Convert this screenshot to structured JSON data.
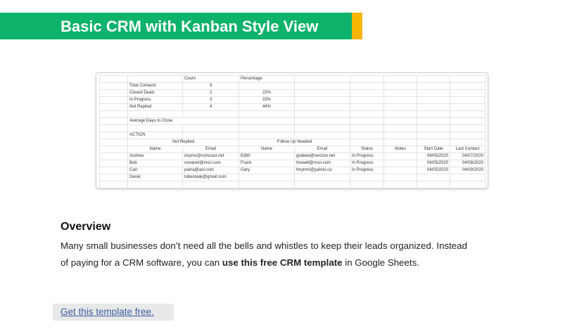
{
  "header": {
    "title": "Basic CRM with Kanban Style View"
  },
  "sheet": {
    "summary_headers": [
      "Count",
      "Percentage"
    ],
    "summary": [
      {
        "label": "Total Contacts",
        "count": 9,
        "percentage": null
      },
      {
        "label": "Closed Deals",
        "count": 2,
        "percentage": "22%"
      },
      {
        "label": "In Progress",
        "count": 3,
        "percentage": "33%"
      },
      {
        "label": "Not Replied",
        "count": 4,
        "percentage": "44%"
      }
    ],
    "average_label": "Average Days to Close",
    "action_label": "ACTION",
    "groups": [
      "Not Replied",
      "Follow Up Needed"
    ],
    "columns": [
      "Name",
      "Email",
      "Name",
      "Email",
      "Status",
      "Notes",
      "Start Date",
      "Last Contact"
    ],
    "contacts": [
      [
        "Andrew",
        "improv@comcast.net",
        "Edith",
        "godeke@verizon.net",
        "In Progress",
        null,
        "04/05/2020",
        "04/07/2020"
      ],
      [
        "Bob",
        "novanet@msn.com",
        "Frank",
        "thowell@msn.com",
        "In Progress",
        null,
        "04/05/2020",
        "04/08/2020"
      ],
      [
        "Carl",
        "paina@aol.com",
        "Gary",
        "thrymm@yahoo.ca",
        "In Progress",
        null,
        "04/05/2020",
        "04/09/2020"
      ],
      [
        "Derek",
        "tubesteak@gmail.com",
        null,
        null,
        null,
        null,
        null,
        null
      ]
    ]
  },
  "overview": {
    "heading": "Overview",
    "before": "Many small businesses don’t need all the bells and whistles to keep their leads organized. Instead of paying for a CRM software, you can ",
    "bold": "use this free CRM template",
    "after": " in Google Sheets."
  },
  "link": "Get this template free."
}
